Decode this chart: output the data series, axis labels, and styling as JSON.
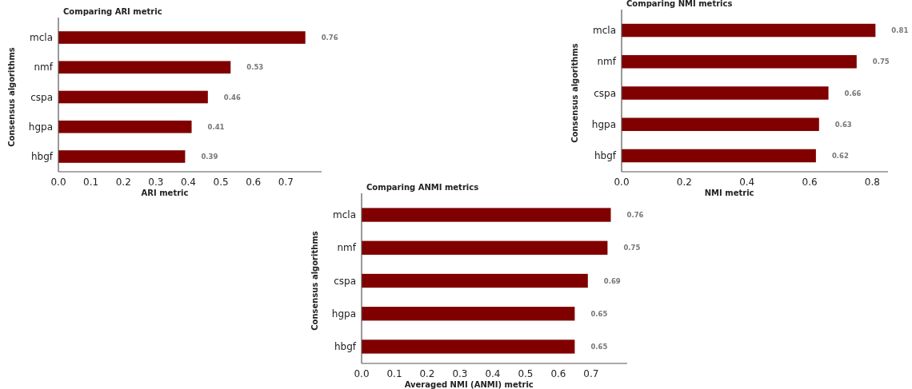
{
  "chart_data": [
    {
      "type": "bar",
      "orientation": "horizontal",
      "title": "Comparing ARI metric",
      "xlabel": "ARI metric",
      "ylabel": "Consensus algorithms",
      "categories": [
        "mcla",
        "nmf",
        "cspa",
        "hgpa",
        "hbgf"
      ],
      "values": [
        0.76,
        0.53,
        0.46,
        0.41,
        0.39
      ],
      "color": "#800000",
      "data_labels": true,
      "xlim": [
        0,
        0.81
      ],
      "xticks": [
        {
          "value": 0,
          "label": "0.0"
        },
        {
          "value": 0.1,
          "label": "0.1"
        },
        {
          "value": 0.2,
          "label": "0.2"
        },
        {
          "value": 0.3,
          "label": "0.3"
        },
        {
          "value": 0.4,
          "label": "0.4"
        },
        {
          "value": 0.5,
          "label": "0.5"
        },
        {
          "value": 0.6,
          "label": "0.6"
        },
        {
          "value": 0.7,
          "label": "0.7"
        }
      ]
    },
    {
      "type": "bar",
      "orientation": "horizontal",
      "title": "Comparing NMI metrics",
      "xlabel": "NMI metric",
      "ylabel": "Consensus algorithms",
      "categories": [
        "mcla",
        "nmf",
        "cspa",
        "hgpa",
        "hbgf"
      ],
      "values": [
        0.81,
        0.75,
        0.66,
        0.63,
        0.62
      ],
      "color": "#800000",
      "data_labels": true,
      "xlim": [
        0,
        0.85
      ],
      "xticks": [
        {
          "value": 0,
          "label": "0.0"
        },
        {
          "value": 0.2,
          "label": "0.2"
        },
        {
          "value": 0.4,
          "label": "0.4"
        },
        {
          "value": 0.6,
          "label": "0.6"
        },
        {
          "value": 0.8,
          "label": "0.8"
        }
      ]
    },
    {
      "type": "bar",
      "orientation": "horizontal",
      "title": "Comparing ANMI metrics",
      "xlabel": "Averaged NMI (ANMI) metric",
      "ylabel": "Consensus algorithms",
      "categories": [
        "mcla",
        "nmf",
        "cspa",
        "hgpa",
        "hbgf"
      ],
      "values": [
        0.76,
        0.75,
        0.69,
        0.65,
        0.65
      ],
      "color": "#800000",
      "data_labels": true,
      "xlim": [
        0,
        0.81
      ],
      "xticks": [
        {
          "value": 0,
          "label": "0.0"
        },
        {
          "value": 0.1,
          "label": "0.1"
        },
        {
          "value": 0.2,
          "label": "0.2"
        },
        {
          "value": 0.3,
          "label": "0.3"
        },
        {
          "value": 0.4,
          "label": "0.4"
        },
        {
          "value": 0.5,
          "label": "0.5"
        },
        {
          "value": 0.6,
          "label": "0.6"
        },
        {
          "value": 0.7,
          "label": "0.7"
        }
      ]
    }
  ]
}
